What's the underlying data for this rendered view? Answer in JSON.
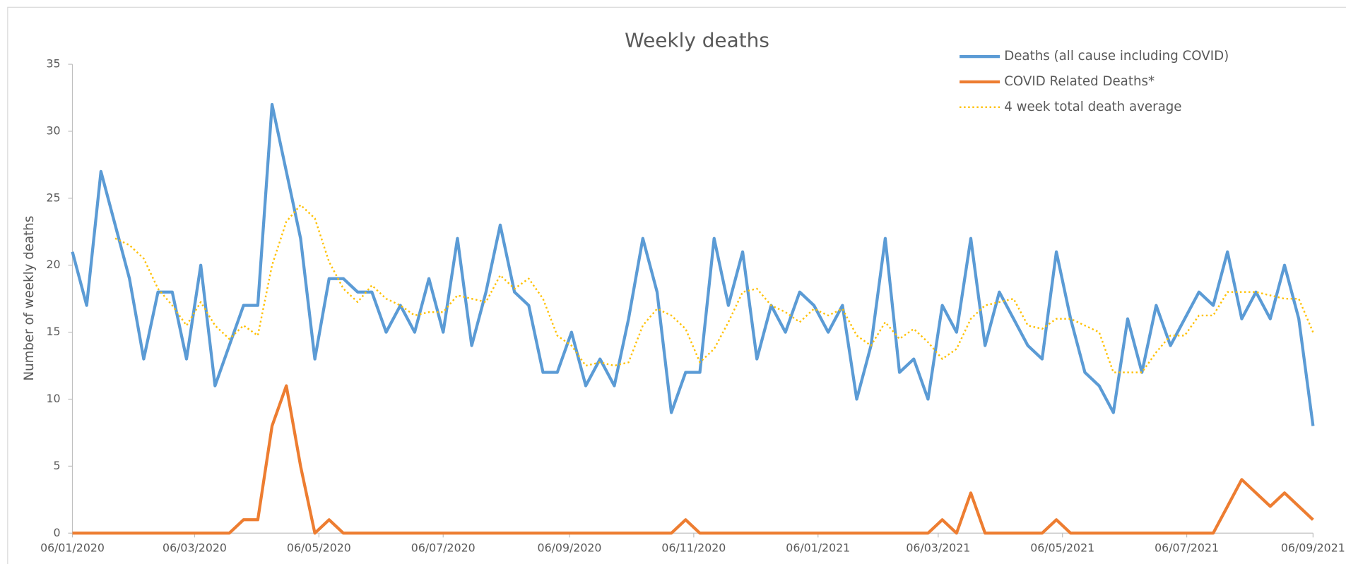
{
  "chart_data": {
    "type": "line",
    "title": "Weekly deaths",
    "y_label": "Number of weekly deaths",
    "x": [
      "06/01/2020",
      "13/01/2020",
      "20/01/2020",
      "27/01/2020",
      "03/02/2020",
      "10/02/2020",
      "17/02/2020",
      "24/02/2020",
      "02/03/2020",
      "09/03/2020",
      "16/03/2020",
      "23/03/2020",
      "30/03/2020",
      "06/04/2020",
      "13/04/2020",
      "20/04/2020",
      "27/04/2020",
      "04/05/2020",
      "11/05/2020",
      "18/05/2020",
      "25/05/2020",
      "01/06/2020",
      "08/06/2020",
      "15/06/2020",
      "22/06/2020",
      "29/06/2020",
      "06/07/2020",
      "13/07/2020",
      "20/07/2020",
      "27/07/2020",
      "03/08/2020",
      "10/08/2020",
      "17/08/2020",
      "24/08/2020",
      "31/08/2020",
      "07/09/2020",
      "14/09/2020",
      "21/09/2020",
      "28/09/2020",
      "05/10/2020",
      "12/10/2020",
      "19/10/2020",
      "26/10/2020",
      "02/11/2020",
      "09/11/2020",
      "16/11/2020",
      "23/11/2020",
      "30/11/2020",
      "07/12/2020",
      "14/12/2020",
      "21/12/2020",
      "28/12/2020",
      "04/01/2021",
      "11/01/2021",
      "18/01/2021",
      "25/01/2021",
      "01/02/2021",
      "08/02/2021",
      "15/02/2021",
      "22/02/2021",
      "01/03/2021",
      "08/03/2021",
      "15/03/2021",
      "22/03/2021",
      "29/03/2021",
      "05/04/2021",
      "12/04/2021",
      "19/04/2021",
      "26/04/2021",
      "03/05/2021",
      "10/05/2021",
      "17/05/2021",
      "24/05/2021",
      "31/05/2021",
      "07/06/2021",
      "14/06/2021",
      "21/06/2021",
      "28/06/2021",
      "05/07/2021",
      "12/07/2021",
      "19/07/2021",
      "26/07/2021",
      "02/08/2021",
      "09/08/2021",
      "16/08/2021",
      "23/08/2021",
      "30/08/2021",
      "06/09/2021"
    ],
    "series": [
      {
        "name": "Deaths (all cause including COVID)",
        "color": "#5b9bd5",
        "style": "solid",
        "values": [
          21,
          17,
          27,
          23,
          19,
          13,
          18,
          18,
          13,
          20,
          11,
          14,
          17,
          17,
          32,
          27,
          22,
          13,
          19,
          19,
          18,
          18,
          15,
          17,
          15,
          19,
          15,
          22,
          14,
          18,
          23,
          18,
          17,
          12,
          12,
          15,
          11,
          13,
          11,
          16,
          22,
          18,
          9,
          12,
          12,
          22,
          17,
          21,
          13,
          17,
          15,
          18,
          17,
          15,
          17,
          10,
          14,
          22,
          12,
          13,
          10,
          17,
          15,
          22,
          14,
          18,
          16,
          14,
          13,
          21,
          16,
          12,
          11,
          9,
          16,
          12,
          17,
          14,
          16,
          18,
          17,
          21,
          16,
          18,
          16,
          20,
          16,
          8
        ]
      },
      {
        "name": "COVID Related Deaths*",
        "color": "#ed7d31",
        "style": "solid",
        "values": [
          0,
          0,
          0,
          0,
          0,
          0,
          0,
          0,
          0,
          0,
          0,
          0,
          1,
          1,
          8,
          11,
          5,
          0,
          1,
          0,
          0,
          0,
          0,
          0,
          0,
          0,
          0,
          0,
          0,
          0,
          0,
          0,
          0,
          0,
          0,
          0,
          0,
          0,
          0,
          0,
          0,
          0,
          0,
          1,
          0,
          0,
          0,
          0,
          0,
          0,
          0,
          0,
          0,
          0,
          0,
          0,
          0,
          0,
          0,
          0,
          0,
          1,
          0,
          3,
          0,
          0,
          0,
          0,
          0,
          1,
          0,
          0,
          0,
          0,
          0,
          0,
          0,
          0,
          0,
          0,
          0,
          2,
          4,
          3,
          2,
          3,
          2,
          1
        ]
      },
      {
        "name": "4 week total death average",
        "color": "#ffc000",
        "style": "dotted",
        "values": [
          null,
          null,
          null,
          22,
          21.5,
          20.5,
          18.25,
          17,
          15.5,
          17.25,
          15.5,
          14.5,
          15.5,
          14.75,
          20,
          23.25,
          24.5,
          23.5,
          20.25,
          18.25,
          17.25,
          18.5,
          17.5,
          17,
          16.25,
          16.5,
          16.5,
          17.75,
          17.5,
          17.25,
          19.25,
          18.25,
          19,
          17.5,
          14.75,
          14,
          12.5,
          12.75,
          12.5,
          12.75,
          15.5,
          16.75,
          16.25,
          15.25,
          12.75,
          13.75,
          15.75,
          18,
          18.25,
          17,
          16.5,
          15.75,
          16.75,
          16.25,
          16.75,
          14.75,
          14,
          15.75,
          14.5,
          15.25,
          14.25,
          13,
          13.75,
          16,
          17,
          17.25,
          17.5,
          15.5,
          15.25,
          16,
          16,
          15.5,
          15,
          12,
          12,
          12,
          13.5,
          14.75,
          14.75,
          16.25,
          16.25,
          18,
          18,
          18,
          17.75,
          17.5,
          17.5,
          15
        ]
      }
    ],
    "xlim": [
      "06/01/2020",
      "06/09/2021"
    ],
    "xticks": [
      "06/01/2020",
      "06/03/2020",
      "06/05/2020",
      "06/07/2020",
      "06/09/2020",
      "06/11/2020",
      "06/01/2021",
      "06/03/2021",
      "06/05/2021",
      "06/07/2021",
      "06/09/2021"
    ],
    "ylim": [
      0,
      35
    ],
    "yticks": [
      0,
      5,
      10,
      15,
      20,
      25,
      30,
      35
    ],
    "grid": false,
    "legend": "top-right"
  }
}
